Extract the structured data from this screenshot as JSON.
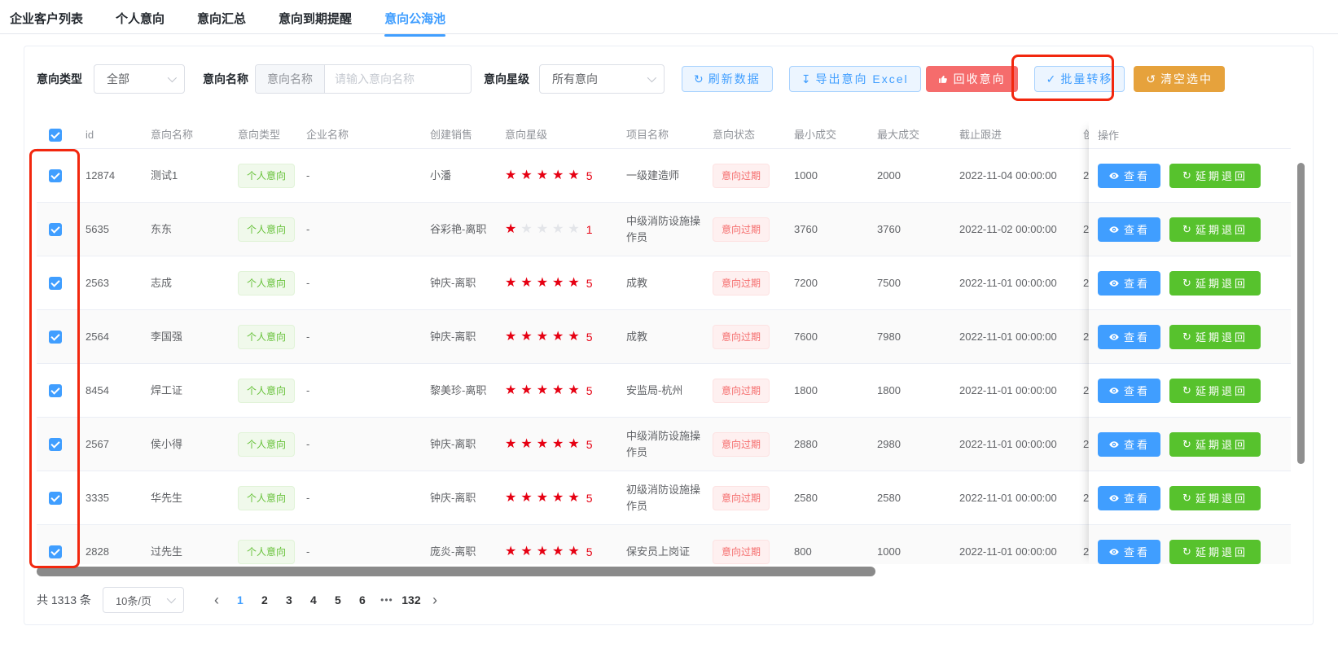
{
  "tabs": [
    {
      "label": "企业客户列表",
      "active": false
    },
    {
      "label": "个人意向",
      "active": false
    },
    {
      "label": "意向汇总",
      "active": false
    },
    {
      "label": "意向到期提醒",
      "active": false
    },
    {
      "label": "意向公海池",
      "active": true
    }
  ],
  "filters": {
    "type_label": "意向类型",
    "type_value": "全部",
    "name_label": "意向名称",
    "name_prefix": "意向名称",
    "name_placeholder": "请输入意向名称",
    "star_label": "意向星级",
    "star_value": "所有意向"
  },
  "toolbar": {
    "refresh_label": "刷新数据",
    "export_label": "导出意向 Excel",
    "recycle_label": "回收意向",
    "batch_transfer_label": "批量转移",
    "clear_label": "清空选中",
    "refresh_glyph": "↻",
    "download_glyph": "↧",
    "check_glyph": "✓",
    "undo_glyph": "↺"
  },
  "table": {
    "columns": {
      "id": "id",
      "name": "意向名称",
      "type": "意向类型",
      "company": "企业名称",
      "sales": "创建销售",
      "stars": "意向星级",
      "project": "项目名称",
      "status": "意向状态",
      "min": "最小成交",
      "max": "最大成交",
      "deadline": "截止跟进",
      "partial": "创",
      "action": "操作"
    },
    "actions": {
      "view_label": "查看",
      "return_label": "延期退回",
      "return_glyph": "↻"
    },
    "rows": [
      {
        "id": "12874",
        "name": "测试1",
        "type": "个人意向",
        "company": "-",
        "sales": "小潘",
        "stars": 5,
        "project": "一级建造师",
        "status": "意向过期",
        "min": "1000",
        "max": "2000",
        "deadline": "2022-11-04 00:00:00",
        "partial": "2"
      },
      {
        "id": "5635",
        "name": "东东",
        "type": "个人意向",
        "company": "-",
        "sales": "谷彩艳-离职",
        "stars": 1,
        "project": "中级消防设施操作员",
        "status": "意向过期",
        "min": "3760",
        "max": "3760",
        "deadline": "2022-11-02 00:00:00",
        "partial": "2"
      },
      {
        "id": "2563",
        "name": "志成",
        "type": "个人意向",
        "company": "-",
        "sales": "钟庆-离职",
        "stars": 5,
        "project": "成教",
        "status": "意向过期",
        "min": "7200",
        "max": "7500",
        "deadline": "2022-11-01 00:00:00",
        "partial": "2"
      },
      {
        "id": "2564",
        "name": "李国强",
        "type": "个人意向",
        "company": "-",
        "sales": "钟庆-离职",
        "stars": 5,
        "project": "成教",
        "status": "意向过期",
        "min": "7600",
        "max": "7980",
        "deadline": "2022-11-01 00:00:00",
        "partial": "2"
      },
      {
        "id": "8454",
        "name": "焊工证",
        "type": "个人意向",
        "company": "-",
        "sales": "黎美珍-离职",
        "stars": 5,
        "project": "安监局-杭州",
        "status": "意向过期",
        "min": "1800",
        "max": "1800",
        "deadline": "2022-11-01 00:00:00",
        "partial": "2"
      },
      {
        "id": "2567",
        "name": "侯小得",
        "type": "个人意向",
        "company": "-",
        "sales": "钟庆-离职",
        "stars": 5,
        "project": "中级消防设施操作员",
        "status": "意向过期",
        "min": "2880",
        "max": "2980",
        "deadline": "2022-11-01 00:00:00",
        "partial": "2"
      },
      {
        "id": "3335",
        "name": "华先生",
        "type": "个人意向",
        "company": "-",
        "sales": "钟庆-离职",
        "stars": 5,
        "project": "初级消防设施操作员",
        "status": "意向过期",
        "min": "2580",
        "max": "2580",
        "deadline": "2022-11-01 00:00:00",
        "partial": "2"
      },
      {
        "id": "2828",
        "name": "过先生",
        "type": "个人意向",
        "company": "-",
        "sales": "庞炎-离职",
        "stars": 5,
        "project": "保安员上岗证",
        "status": "意向过期",
        "min": "800",
        "max": "1000",
        "deadline": "2022-11-01 00:00:00",
        "partial": "2"
      }
    ]
  },
  "pagination": {
    "total_label": "共 1313 条",
    "page_size": "10条/页",
    "prev_glyph": "‹",
    "next_glyph": "›",
    "pages": [
      "1",
      "2",
      "3",
      "4",
      "5",
      "6"
    ],
    "current_page": "1",
    "ellipsis": "•••",
    "last_page": "132"
  },
  "colors": {
    "primary_blue": "#409eff",
    "button_green": "#57c22d",
    "tag_green": "#67c23a",
    "tag_red": "#f56c6c",
    "orange": "#e6a23c",
    "star_red": "#e60012",
    "annotation_red": "#f2270e"
  }
}
